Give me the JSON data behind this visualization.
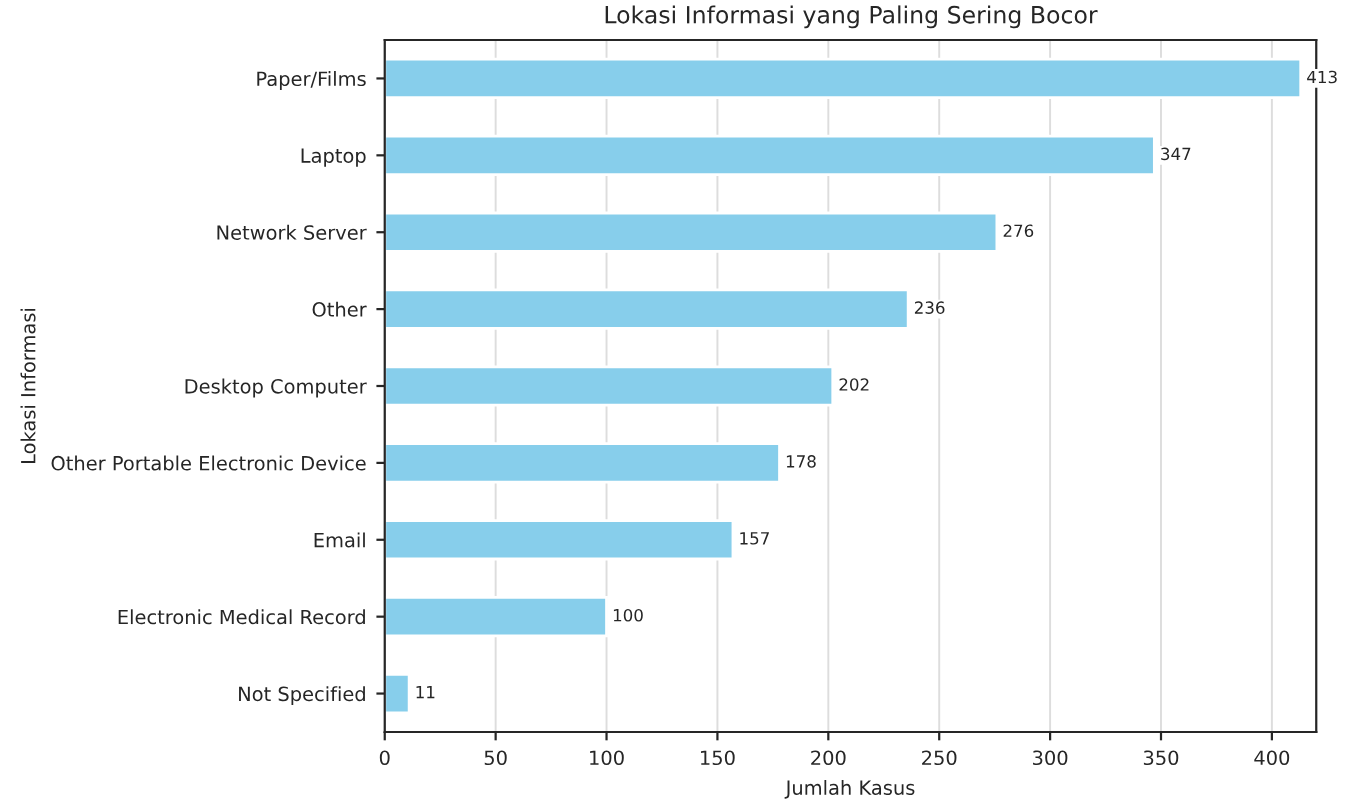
{
  "chart_data": {
    "type": "bar",
    "orientation": "horizontal",
    "title": "Lokasi Informasi yang Paling Sering Bocor",
    "xlabel": "Jumlah Kasus",
    "ylabel": "Lokasi Informasi",
    "categories": [
      "Paper/Films",
      "Laptop",
      "Network Server",
      "Other",
      "Desktop Computer",
      "Other Portable Electronic Device",
      "Email",
      "Electronic Medical Record",
      "Not Specified"
    ],
    "values": [
      413,
      347,
      276,
      236,
      202,
      178,
      157,
      100,
      11
    ],
    "color": "#87ceeb",
    "data_labels": true,
    "xlim": [
      0,
      420
    ],
    "xticks": [
      0,
      50,
      100,
      150,
      200,
      250,
      300,
      350,
      400
    ],
    "grid": "x",
    "legend": false
  }
}
